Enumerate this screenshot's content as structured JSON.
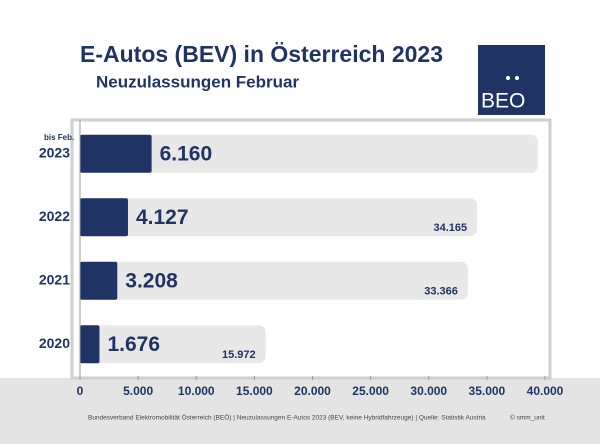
{
  "chart_data": {
    "type": "hbar",
    "title": "E-Autos (BEV) in Österreich 2023",
    "subtitle": "Neuzulassungen Februar",
    "logo": "BEO",
    "annotation": "bis Feb.",
    "categories": [
      "2023",
      "2022",
      "2021",
      "2020"
    ],
    "series": [
      {
        "color": "#e8e8e8",
        "values": [
          39400,
          34165,
          33366,
          15972
        ],
        "value_labels": [
          null,
          "34.165",
          "33.366",
          "15.972"
        ]
      },
      {
        "color": "#1f3464",
        "values": [
          6160,
          4127,
          3208,
          1676
        ],
        "value_labels": [
          "6.160",
          "4.127",
          "3.208",
          "1.676"
        ]
      }
    ],
    "xlim": [
      0,
      40000
    ],
    "xticks": [
      0,
      {
        "value": 5000,
        "label": "5.000"
      },
      {
        "value": 10000,
        "label": "10.000"
      },
      {
        "value": 15000,
        "label": "15.000"
      },
      {
        "value": 20000,
        "label": "20.000"
      },
      {
        "value": 25000,
        "label": "25.000"
      },
      {
        "value": 30000,
        "label": "30.000"
      },
      {
        "value": 35000,
        "label": "35.000"
      },
      {
        "value": 40000,
        "label": "40.000"
      }
    ],
    "footer": "Bundesverband Elektromobilität Österreich (BEÖ)  |  Neuzulassungen E-Autos 2023 (BEV, keine Hybridfahrzeuge)  |  Quelle: Statistik Austria",
    "credit": "© smm_unit"
  }
}
